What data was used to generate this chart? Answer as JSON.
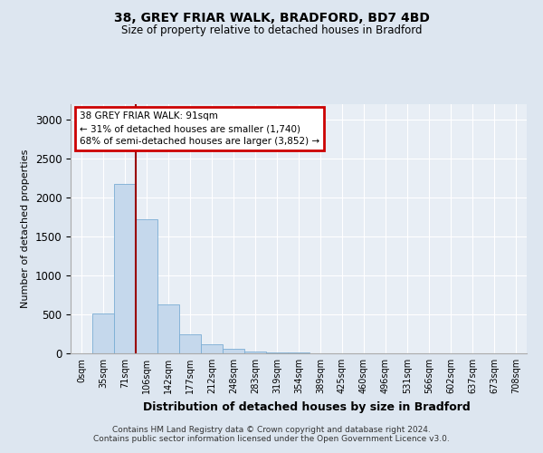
{
  "title_line1": "38, GREY FRIAR WALK, BRADFORD, BD7 4BD",
  "title_line2": "Size of property relative to detached houses in Bradford",
  "xlabel": "Distribution of detached houses by size in Bradford",
  "ylabel": "Number of detached properties",
  "bin_labels": [
    "0sqm",
    "35sqm",
    "71sqm",
    "106sqm",
    "142sqm",
    "177sqm",
    "212sqm",
    "248sqm",
    "283sqm",
    "319sqm",
    "354sqm",
    "389sqm",
    "425sqm",
    "460sqm",
    "496sqm",
    "531sqm",
    "566sqm",
    "602sqm",
    "637sqm",
    "673sqm",
    "708sqm"
  ],
  "bin_values": [
    5,
    510,
    2180,
    1720,
    630,
    240,
    120,
    55,
    28,
    12,
    6,
    5,
    4,
    3,
    2,
    1,
    1,
    1,
    0,
    0,
    5
  ],
  "bar_color": "#c5d8ec",
  "bar_edge_color": "#7aadd4",
  "vline_x": 2.5,
  "vline_color": "#990000",
  "annotation_text": "38 GREY FRIAR WALK: 91sqm\n← 31% of detached houses are smaller (1,740)\n68% of semi-detached houses are larger (3,852) →",
  "annotation_box_color": "#cc0000",
  "ylim": [
    0,
    3200
  ],
  "yticks": [
    0,
    500,
    1000,
    1500,
    2000,
    2500,
    3000
  ],
  "footer_line1": "Contains HM Land Registry data © Crown copyright and database right 2024.",
  "footer_line2": "Contains public sector information licensed under the Open Government Licence v3.0.",
  "bg_color": "#dde6f0",
  "plot_bg_color": "#e8eef5",
  "grid_color": "#ffffff"
}
